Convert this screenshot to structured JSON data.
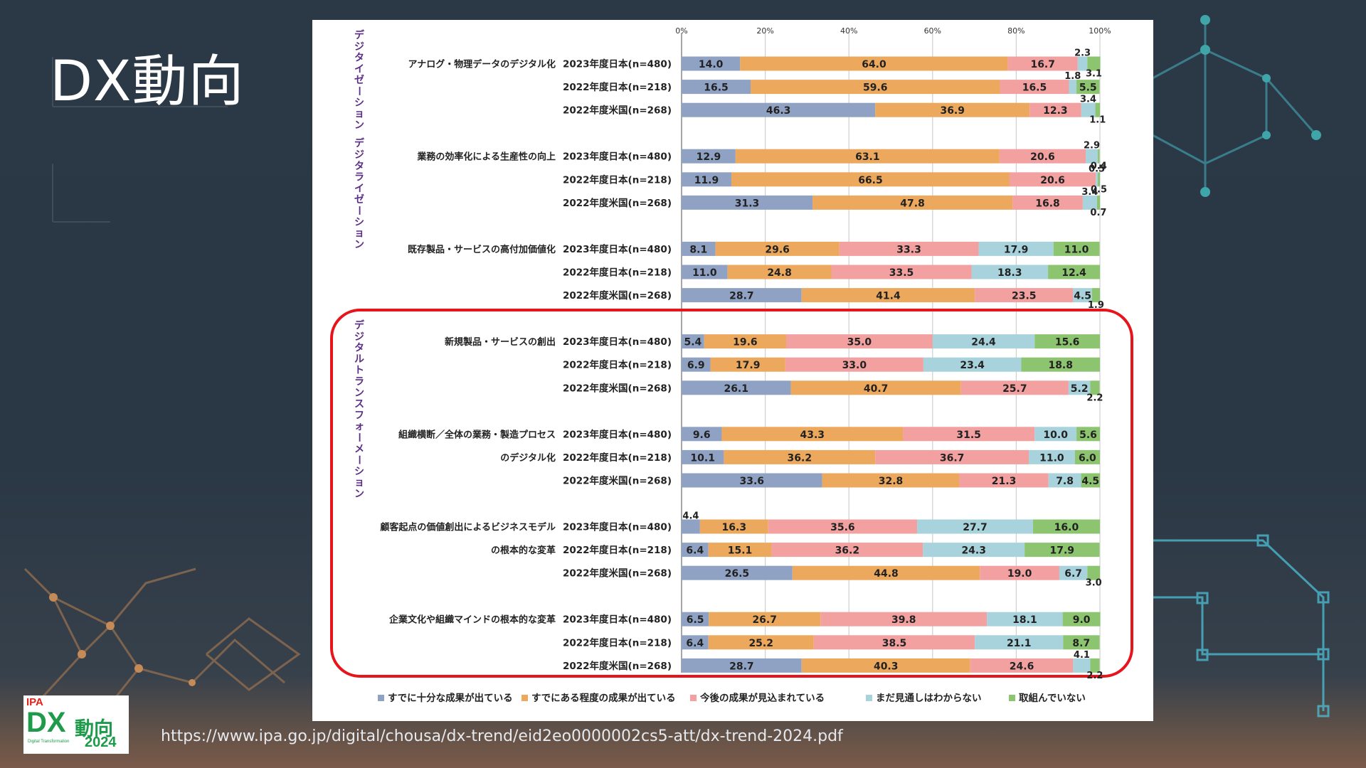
{
  "slide": {
    "title": "DX動向",
    "source_url": "https://www.ipa.go.jp/digital/chousa/dx-trend/eid2eo0000002cs5-att/dx-trend-2024.pdf"
  },
  "logo": {
    "org": "IPA",
    "name_dx": "DX",
    "name_jp": "動向",
    "subtitle": "Digital Transformation",
    "year": "2024"
  },
  "colors": {
    "highlight": "#e8141b",
    "background": "#2b3846"
  },
  "chart_data": {
    "type": "bar",
    "orientation": "horizontal",
    "stacking": "percent",
    "x_ticks": [
      "0%",
      "20%",
      "40%",
      "60%",
      "80%",
      "100%"
    ],
    "xlim": [
      0,
      100
    ],
    "grid": true,
    "legend_position": "bottom",
    "series": [
      {
        "name": "すでに十分な成果が出ている",
        "color": "#8fa2c4"
      },
      {
        "name": "すでにある程度の成果が出ている",
        "color": "#eca95e"
      },
      {
        "name": "今後の成果が見込まれている",
        "color": "#f2a0a0"
      },
      {
        "name": "まだ見通しはわからない",
        "color": "#a9d3dc"
      },
      {
        "name": "取組んでいない",
        "color": "#8cc46f"
      }
    ],
    "group_sections": [
      {
        "label": "デジタイゼーション デジタライゼーション",
        "groups": [
          0,
          1,
          2
        ]
      },
      {
        "label": "デジタルトランスフォーメーション",
        "groups": [
          3,
          4,
          5,
          6
        ],
        "highlighted": true
      }
    ],
    "groups": [
      {
        "label": [
          "アナログ・物理データのデジタル化"
        ],
        "rows": [
          {
            "label": "2023年度日本(n=480)",
            "values": [
              14.0,
              64.0,
              16.7,
              2.3,
              3.1
            ]
          },
          {
            "label": "2022年度日本(n=218)",
            "values": [
              16.5,
              59.6,
              16.5,
              1.8,
              5.5
            ]
          },
          {
            "label": "2022年度米国(n=268)",
            "values": [
              46.3,
              36.9,
              12.3,
              3.4,
              1.1
            ]
          }
        ]
      },
      {
        "label": [
          "業務の効率化による生産性の向上"
        ],
        "rows": [
          {
            "label": "2023年度日本(n=480)",
            "values": [
              12.9,
              63.1,
              20.6,
              2.9,
              0.4
            ]
          },
          {
            "label": "2022年度日本(n=218)",
            "values": [
              11.9,
              66.5,
              20.6,
              0.5,
              0.5
            ]
          },
          {
            "label": "2022年度米国(n=268)",
            "values": [
              31.3,
              47.8,
              16.8,
              3.4,
              0.7
            ]
          }
        ]
      },
      {
        "label": [
          "既存製品・サービスの高付加価値化"
        ],
        "rows": [
          {
            "label": "2023年度日本(n=480)",
            "values": [
              8.1,
              29.6,
              33.3,
              17.9,
              11.0
            ]
          },
          {
            "label": "2022年度日本(n=218)",
            "values": [
              11.0,
              24.8,
              33.5,
              18.3,
              12.4
            ]
          },
          {
            "label": "2022年度米国(n=268)",
            "values": [
              28.7,
              41.4,
              23.5,
              4.5,
              1.9
            ]
          }
        ]
      },
      {
        "label": [
          "新規製品・サービスの創出"
        ],
        "rows": [
          {
            "label": "2023年度日本(n=480)",
            "values": [
              5.4,
              19.6,
              35.0,
              24.4,
              15.6
            ]
          },
          {
            "label": "2022年度日本(n=218)",
            "values": [
              6.9,
              17.9,
              33.0,
              23.4,
              18.8
            ]
          },
          {
            "label": "2022年度米国(n=268)",
            "values": [
              26.1,
              40.7,
              25.7,
              5.2,
              2.2
            ]
          }
        ]
      },
      {
        "label": [
          "組織横断／全体の業務・製造プロセス",
          "のデジタル化"
        ],
        "rows": [
          {
            "label": "2023年度日本(n=480)",
            "values": [
              9.6,
              43.3,
              31.5,
              10.0,
              5.6
            ]
          },
          {
            "label": "2022年度日本(n=218)",
            "values": [
              10.1,
              36.2,
              36.7,
              11.0,
              6.0
            ]
          },
          {
            "label": "2022年度米国(n=268)",
            "values": [
              33.6,
              32.8,
              21.3,
              7.8,
              4.5
            ]
          }
        ]
      },
      {
        "label": [
          "顧客起点の価値創出によるビジネスモデル",
          "の根本的な変革"
        ],
        "rows": [
          {
            "label": "2023年度日本(n=480)",
            "values": [
              4.4,
              16.3,
              35.6,
              27.7,
              16.0
            ]
          },
          {
            "label": "2022年度日本(n=218)",
            "values": [
              6.4,
              15.1,
              36.2,
              24.3,
              17.9
            ]
          },
          {
            "label": "2022年度米国(n=268)",
            "values": [
              26.5,
              44.8,
              19.0,
              6.7,
              3.0
            ]
          }
        ]
      },
      {
        "label": [
          "企業文化や組織マインドの根本的な変革"
        ],
        "rows": [
          {
            "label": "2023年度日本(n=480)",
            "values": [
              6.5,
              26.7,
              39.8,
              18.1,
              9.0
            ]
          },
          {
            "label": "2022年度日本(n=218)",
            "values": [
              6.4,
              25.2,
              38.5,
              21.1,
              8.7
            ]
          },
          {
            "label": "2022年度米国(n=268)",
            "values": [
              28.7,
              40.3,
              24.6,
              4.1,
              2.2
            ]
          }
        ]
      }
    ]
  }
}
